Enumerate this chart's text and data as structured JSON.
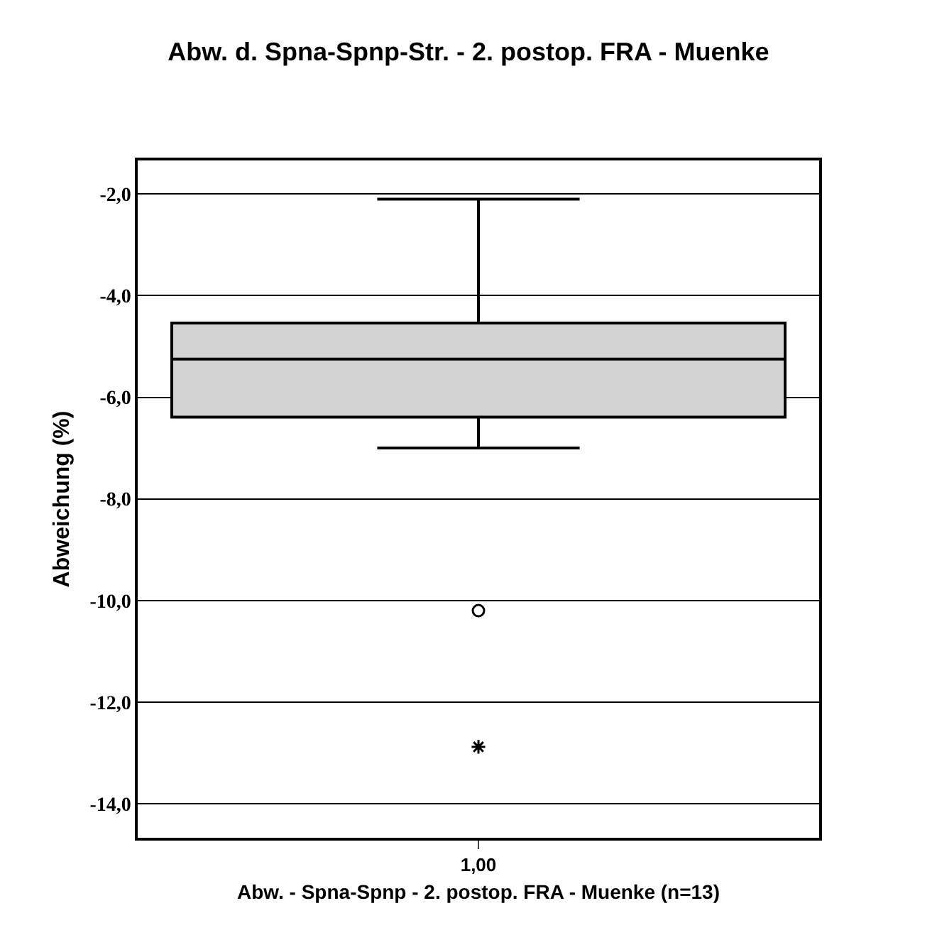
{
  "chart_data": {
    "type": "box",
    "title": "Abw. d. Spna-Spnp-Str. - 2. postop. FRA - Muenke",
    "xlabel": "Abw. - Spna-Spnp - 2. postop. FRA - Muenke (n=13)",
    "ylabel": "Abweichung (%)",
    "categories": [
      "1,00"
    ],
    "boxes": [
      {
        "low": -7.0,
        "q1": -6.39,
        "median": -5.25,
        "q3": -4.54,
        "high": -2.1,
        "outliers": [
          -10.2,
          -12.88
        ]
      }
    ],
    "color": "#d3d3d3",
    "ylim": [
      -14.67,
      -1.34
    ],
    "yticks": [
      {
        "value": -2,
        "label": "-2,0"
      },
      {
        "value": -4,
        "label": "-4,0"
      },
      {
        "value": -6,
        "label": "-6,0"
      },
      {
        "value": -8,
        "label": "-8,0"
      },
      {
        "value": -10,
        "label": "-10,0"
      },
      {
        "value": -12,
        "label": "-12,0"
      },
      {
        "value": -14,
        "label": "-14,0"
      }
    ],
    "grid": "y"
  }
}
